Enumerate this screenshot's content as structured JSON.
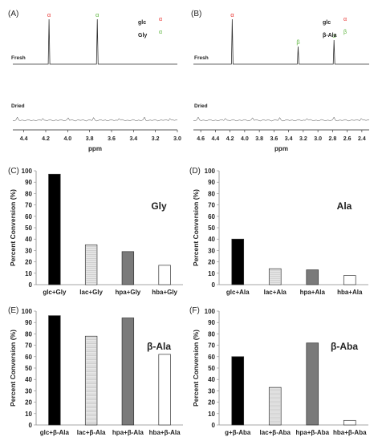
{
  "nmr": [
    {
      "label": "(A)",
      "fresh_label": "Fresh",
      "dried_label": "Dried",
      "peak_markers": [
        {
          "ppm": 4.17,
          "symbol": "α",
          "color": "#e8312e"
        },
        {
          "ppm": 3.73,
          "symbol": "α",
          "color": "#5ab33a"
        }
      ],
      "legend": [
        {
          "name": "glc",
          "symbol": "α",
          "color": "#e8312e"
        },
        {
          "name": "Gly",
          "symbol": "α",
          "color": "#5ab33a"
        }
      ],
      "axis": {
        "label": "ppm",
        "min": 3.0,
        "max": 4.5,
        "ticks": [
          "4.4",
          "4.2",
          "4.0",
          "3.8",
          "3.6",
          "3.4",
          "3.2",
          "3.0"
        ]
      }
    },
    {
      "label": "(B)",
      "fresh_label": "Fresh",
      "dried_label": "Dried",
      "peak_markers": [
        {
          "ppm": 4.17,
          "symbol": "α",
          "color": "#e8312e"
        },
        {
          "ppm": 3.27,
          "symbol": "β",
          "color": "#5ab33a"
        },
        {
          "ppm": 2.78,
          "symbol": "α",
          "color": "#5ab33a"
        }
      ],
      "legend": [
        {
          "name": "glc",
          "symbol": "α",
          "color": "#e8312e"
        },
        {
          "name": "β-Ala",
          "symbol": "β",
          "color": "#5ab33a"
        }
      ],
      "axis": {
        "label": "ppm",
        "min": 2.3,
        "max": 4.7,
        "ticks": [
          "4.6",
          "4.4",
          "4.2",
          "4.0",
          "3.8",
          "3.6",
          "3.4",
          "3.2",
          "3.0",
          "2.8",
          "2.6",
          "2.4"
        ]
      }
    }
  ],
  "chart_data": [
    {
      "type": "bar",
      "panel": "(C)",
      "compound": "Gly",
      "categories": [
        "glc+Gly",
        "lac+Gly",
        "hpa+Gly",
        "hba+Gly"
      ],
      "values": [
        97,
        35,
        29,
        17
      ],
      "ylabel": "Percent Conversion (%)",
      "ylim": [
        0,
        100
      ],
      "yticks": [
        0,
        10,
        20,
        30,
        40,
        50,
        60,
        70,
        80,
        90,
        100
      ]
    },
    {
      "type": "bar",
      "panel": "(D)",
      "compound": "Ala",
      "categories": [
        "glc+Ala",
        "lac+Ala",
        "hpa+Ala",
        "hba+Ala"
      ],
      "values": [
        40,
        14,
        13,
        8
      ],
      "ylabel": "Percent Conversion (%)",
      "ylim": [
        0,
        100
      ],
      "yticks": [
        0,
        10,
        20,
        30,
        40,
        50,
        60,
        70,
        80,
        90,
        100
      ]
    },
    {
      "type": "bar",
      "panel": "(E)",
      "compound": "β-Ala",
      "categories": [
        "glc+β-Ala",
        "lac+β-Ala",
        "hpa+β-Ala",
        "hba+β-Ala"
      ],
      "values": [
        96,
        78,
        94,
        62
      ],
      "ylabel": "Percent Conversion (%)",
      "ylim": [
        0,
        100
      ],
      "yticks": [
        0,
        10,
        20,
        30,
        40,
        50,
        60,
        70,
        80,
        90,
        100
      ]
    },
    {
      "type": "bar",
      "panel": "(F)",
      "compound": "β-Aba",
      "categories": [
        "g+β-Aba",
        "lac+β-Aba",
        "hpa+β-Aba",
        "hba+β-Aba"
      ],
      "values": [
        60,
        33,
        72,
        4
      ],
      "ylabel": "Percent Conversion (%)",
      "ylim": [
        0,
        100
      ],
      "yticks": [
        0,
        10,
        20,
        30,
        40,
        50,
        60,
        70,
        80,
        90,
        100
      ]
    }
  ],
  "colors": {
    "glc": "#000000",
    "lac": "#d0d0d0",
    "hpa": "#7a7a7a",
    "hba": "#ffffff",
    "alpha_red": "#e8312e",
    "green": "#5ab33a"
  }
}
